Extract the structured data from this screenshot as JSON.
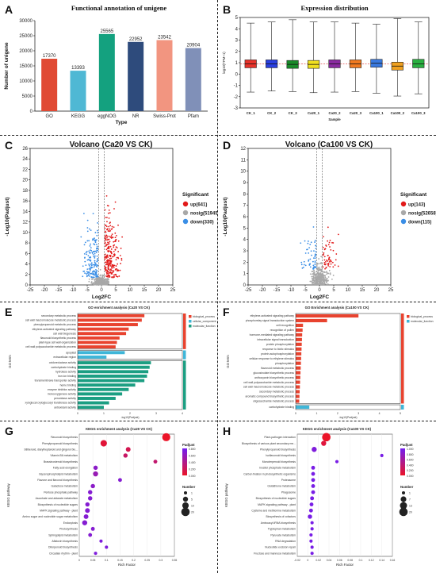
{
  "panels": {
    "A": {
      "letter": "A"
    },
    "B": {
      "letter": "B"
    },
    "C": {
      "letter": "C"
    },
    "D": {
      "letter": "D"
    },
    "E": {
      "letter": "E"
    },
    "F": {
      "letter": "F"
    },
    "G": {
      "letter": "G"
    },
    "H": {
      "letter": "H"
    }
  },
  "chart_data": [
    {
      "id": "A",
      "type": "bar",
      "title": "Functional annotation of unigene",
      "xlabel": "Type",
      "ylabel": "Number of unigene",
      "categories": [
        "GO",
        "KEGG",
        "eggNOG",
        "NR",
        "Swiss-Prot",
        "Pfam"
      ],
      "values": [
        17370,
        13393,
        25565,
        22952,
        23542,
        20904
      ],
      "colors": [
        "#e04a34",
        "#4fb8d4",
        "#14a17f",
        "#2e4b7c",
        "#f29580",
        "#8090b8"
      ],
      "ylim": [
        0,
        30000
      ],
      "yticks": [
        0,
        5000,
        10000,
        15000,
        20000,
        25000,
        30000
      ]
    },
    {
      "id": "B",
      "type": "box",
      "title": "Expression distribution",
      "xlabel": "Sample",
      "ylabel": "log10(TPM+1)",
      "ylim": [
        -3,
        5
      ],
      "yticks": [
        -3,
        -2,
        -1,
        0,
        1,
        2,
        3,
        4,
        5
      ],
      "categories": [
        "CK_1",
        "CK_2",
        "CK_3",
        "Ca20_1",
        "Ca20_2",
        "Ca20_3",
        "Ca100_1",
        "Ca100_2",
        "Ca100_3"
      ],
      "colors": [
        "#e8322a",
        "#2a3fe0",
        "#1a8a2a",
        "#f0e020",
        "#8a2aa0",
        "#f07a20",
        "#3a7ae0",
        "#f0a020",
        "#2ab040"
      ],
      "boxes": [
        {
          "min": -1.6,
          "q1": 0.55,
          "median": 0.9,
          "q3": 1.25,
          "max": 4.5
        },
        {
          "min": -1.5,
          "q1": 0.55,
          "median": 0.9,
          "q3": 1.25,
          "max": 4.6
        },
        {
          "min": -1.55,
          "q1": 0.5,
          "median": 0.85,
          "q3": 1.2,
          "max": 4.8
        },
        {
          "min": -1.65,
          "q1": 0.5,
          "median": 0.85,
          "q3": 1.2,
          "max": 4.6
        },
        {
          "min": -1.6,
          "q1": 0.55,
          "median": 0.9,
          "q3": 1.25,
          "max": 4.6
        },
        {
          "min": -1.55,
          "q1": 0.55,
          "median": 0.9,
          "q3": 1.25,
          "max": 4.5
        },
        {
          "min": -1.7,
          "q1": 0.6,
          "median": 0.95,
          "q3": 1.3,
          "max": 4.4
        },
        {
          "min": -1.95,
          "q1": 0.35,
          "median": 0.7,
          "q3": 1.05,
          "max": 4.9
        },
        {
          "min": -1.75,
          "q1": 0.55,
          "median": 0.9,
          "q3": 1.3,
          "max": 4.6
        }
      ]
    },
    {
      "id": "C",
      "type": "scatter",
      "title": "Volcano (Ca20 VS CK)",
      "xlabel": "Log2FC",
      "ylabel": "-Log10(Padjust)",
      "xlim": [
        -25,
        25
      ],
      "ylim": [
        0,
        26
      ],
      "xticks": [
        -25,
        -20,
        -15,
        -10,
        -5,
        0,
        5,
        10,
        15,
        20,
        25
      ],
      "yticks": [
        0,
        2,
        4,
        6,
        8,
        10,
        12,
        14,
        16,
        18,
        20,
        22,
        24,
        26
      ],
      "legend_title": "Significant",
      "legend_position": "right",
      "series": [
        {
          "name": "up(641)",
          "color": "#e21a1a",
          "count": 641
        },
        {
          "name": "nosig(51945)",
          "color": "#a8a8a8",
          "count": 51945
        },
        {
          "name": "down(330)",
          "color": "#3a8ee6",
          "count": 330
        }
      ]
    },
    {
      "id": "D",
      "type": "scatter",
      "title": "Volcano (Ca100 VS CK)",
      "xlabel": "Log2FC",
      "ylabel": "-Log10(Padjust)",
      "xlim": [
        -25,
        25
      ],
      "ylim": [
        0,
        12
      ],
      "xticks": [
        -25,
        -20,
        -15,
        -10,
        -5,
        0,
        5,
        10,
        15,
        20,
        25
      ],
      "yticks": [
        0,
        1,
        2,
        3,
        4,
        5,
        6,
        7,
        8,
        9,
        10,
        11,
        12
      ],
      "legend_title": "Significant",
      "legend_position": "right",
      "series": [
        {
          "name": "up(143)",
          "color": "#e21a1a",
          "count": 143
        },
        {
          "name": "nosig(52658)",
          "color": "#a8a8a8",
          "count": 52658
        },
        {
          "name": "down(115)",
          "color": "#3a8ee6",
          "count": 115
        }
      ]
    },
    {
      "id": "E",
      "type": "bar",
      "orientation": "horizontal",
      "title": "GO enrichment analysis (Ca20 VS CK)",
      "xlabel": "-log10(Padjust)",
      "ylabel": "GO term",
      "xlim": [
        0,
        4
      ],
      "legend": [
        "biological_process",
        "cellular_component",
        "molecular_function"
      ],
      "legend_colors": [
        "#e8432f",
        "#3fb6d8",
        "#1b9e82"
      ],
      "groups": [
        {
          "name": "biological_process",
          "color": "#e8432f",
          "terms": [
            "secondary metabolic process",
            "cell wall macromolecule metabolic process",
            "phenylpropanoid metabolic process",
            "ethylene-activated signaling pathway",
            "cell wall biogenesis",
            "flavonoid biosynthetic process",
            "plant-type cell wall organization",
            "cell wall polysaccharide metabolic process"
          ],
          "values": [
            2.55,
            2.45,
            2.3,
            1.95,
            1.85,
            1.6,
            1.5,
            1.45
          ]
        },
        {
          "name": "cellular_component",
          "color": "#3fb6d8",
          "terms": [
            "apoplast",
            "extracellular region"
          ],
          "values": [
            1.8,
            1.1
          ]
        },
        {
          "name": "molecular_function",
          "color": "#1b9e82",
          "terms": [
            "oxidoreductase activity",
            "carbohydrate binding",
            "hydrolase activity",
            "iron ion binding",
            "transmembrane transporter activity",
            "heme binding",
            "enzyme inhibitor activity",
            "monooxygenase activity",
            "peroxidase activity",
            "xyloglucan:xyloglucosyl transferase activity",
            "antioxidant activity"
          ],
          "values": [
            2.8,
            2.75,
            2.7,
            2.65,
            2.55,
            2.2,
            1.95,
            1.7,
            1.45,
            1.2,
            1.0
          ]
        }
      ]
    },
    {
      "id": "F",
      "type": "bar",
      "orientation": "horizontal",
      "title": "GO Enrichment analysis (Ca100 VS CK)",
      "xlabel": "-log10(Padjust)",
      "ylabel": "GO term",
      "xlim": [
        0,
        5
      ],
      "legend": [
        "biological_process",
        "molecular_function"
      ],
      "legend_colors": [
        "#e8432f",
        "#3fb6d8"
      ],
      "groups": [
        {
          "name": "biological_process",
          "color": "#e8432f",
          "terms": [
            "ethylene-activated signaling pathway",
            "phosphorelay signal transduction system",
            "cell recognition",
            "recognition of pollen",
            "hormone-mediated signaling pathway",
            "intracellular signal transduction",
            "protein phosphorylation",
            "response to biotic stimulus",
            "protein autophosphorylation",
            "cellular response to ethylene stimulus",
            "phosphorylation",
            "flavonoid metabolic process",
            "glucosinolate biosynthetic process",
            "anthocyanin biosynthetic process",
            "cell wall polysaccharide metabolic process",
            "cell wall macromolecule metabolic process",
            "secondary metabolic process",
            "aromatic compound biosynthetic process",
            "oligosaccharide metabolic process"
          ],
          "values": [
            3.0,
            1.5,
            0.35,
            0.33,
            0.31,
            0.3,
            0.29,
            0.28,
            0.27,
            0.26,
            0.25,
            0.24,
            0.23,
            0.22,
            0.21,
            0.2,
            0.19,
            0.18,
            0.17
          ]
        },
        {
          "name": "molecular_function",
          "color": "#3fb6d8",
          "terms": [
            "carbohydrate binding"
          ],
          "values": [
            0.65
          ]
        }
      ]
    },
    {
      "id": "G",
      "type": "scatter",
      "title": "KEGG enrichment analysis (Ca20 VS CK)",
      "xlabel": "Rich Factor",
      "ylabel": "KEGG pathway",
      "xlim": [
        0,
        0.35
      ],
      "xticks": [
        0,
        0.05,
        0.1,
        0.15,
        0.2,
        0.25,
        0.3,
        0.35
      ],
      "legend_titles": [
        "Padjust",
        "Number"
      ],
      "padjust_ticks": [
        0.8,
        0.6,
        0.4,
        0.2,
        0.0
      ],
      "number_ticks": [
        1,
        5,
        10,
        20
      ],
      "points": [
        {
          "pathway": "Flavonoid biosynthesis",
          "rich": 0.32,
          "n": 18,
          "p": 0.0
        },
        {
          "pathway": "Phenylpropanoid biosynthesis",
          "rich": 0.09,
          "n": 10,
          "p": 0.08
        },
        {
          "pathway": "Stilbenoid, diarylheptanoid and gingerol bio...",
          "rich": 0.18,
          "n": 4,
          "p": 0.2
        },
        {
          "pathway": "Vitamin B6 metabolism",
          "rich": 0.17,
          "n": 3,
          "p": 0.3
        },
        {
          "pathway": "Brassinosteroid biosynthesis",
          "rich": 0.28,
          "n": 2,
          "p": 0.35
        },
        {
          "pathway": "Fatty acid elongation",
          "rich": 0.06,
          "n": 3,
          "p": 0.8
        },
        {
          "pathway": "Glycerophospholipid metabolism",
          "rich": 0.06,
          "n": 5,
          "p": 0.7
        },
        {
          "pathway": "Flavone and flavonol biosynthesis",
          "rich": 0.15,
          "n": 2,
          "p": 0.85
        },
        {
          "pathway": "Galactose metabolism",
          "rich": 0.05,
          "n": 3,
          "p": 0.8
        },
        {
          "pathway": "Pentose phosphate pathway",
          "rich": 0.04,
          "n": 3,
          "p": 0.85
        },
        {
          "pathway": "Ascorbate and aldarate metabolism",
          "rich": 0.04,
          "n": 3,
          "p": 0.85
        },
        {
          "pathway": "Biosynthesis of nucleotide sugars",
          "rich": 0.03,
          "n": 3,
          "p": 0.85
        },
        {
          "pathway": "MAPK signaling pathway - plant",
          "rich": 0.03,
          "n": 4,
          "p": 0.85
        },
        {
          "pathway": "Amino sugar and nucleotide sugar metabolism",
          "rich": 0.025,
          "n": 4,
          "p": 0.85
        },
        {
          "pathway": "Endocytosis",
          "rich": 0.02,
          "n": 5,
          "p": 0.85
        },
        {
          "pathway": "Photosynthesis",
          "rich": 0.05,
          "n": 2,
          "p": 0.85
        },
        {
          "pathway": "Sphingolipid metabolism",
          "rich": 0.04,
          "n": 2,
          "p": 0.85
        },
        {
          "pathway": "Aflatoxin biosynthesis",
          "rich": 0.08,
          "n": 1,
          "p": 0.9
        },
        {
          "pathway": "Diterpenoid biosynthesis",
          "rich": 0.1,
          "n": 1,
          "p": 0.9
        },
        {
          "pathway": "Circadian rhythm - plant",
          "rich": 0.06,
          "n": 1,
          "p": 0.9
        }
      ]
    },
    {
      "id": "H",
      "type": "scatter",
      "title": "KEGG enrichment analysis (Ca100 VS CK)",
      "xlabel": "Rich Factor",
      "ylabel": "KEGG pathway",
      "xlim": [
        -0.02,
        0.16
      ],
      "xticks": [
        -0.02,
        0,
        0.02,
        0.04,
        0.06,
        0.08,
        0.1,
        0.12,
        0.14,
        0.16
      ],
      "legend_titles": [
        "Padjust",
        "Number"
      ],
      "padjust_ticks": [
        1.0,
        0.8,
        0.6,
        0.4,
        0.2,
        0.0
      ],
      "number_ticks": [
        1,
        7,
        13,
        20
      ],
      "points": [
        {
          "pathway": "Plant-pathogen interaction",
          "rich": 0.035,
          "n": 20,
          "p": 0.0
        },
        {
          "pathway": "Biosynthesis of various plant secondary me...",
          "rich": 0.03,
          "n": 5,
          "p": 0.1
        },
        {
          "pathway": "Phenylpropanoid biosynthesis",
          "rich": 0.012,
          "n": 5,
          "p": 0.9
        },
        {
          "pathway": "Isoflavonoid biosynthesis",
          "rich": 0.14,
          "n": 1,
          "p": 0.95
        },
        {
          "pathway": "Monoterpenoid biosynthesis",
          "rich": 0.055,
          "n": 1,
          "p": 0.95
        },
        {
          "pathway": "Inositol phosphate metabolism",
          "rich": 0.01,
          "n": 2,
          "p": 0.95
        },
        {
          "pathway": "Carbon fixation in photosynthetic organisms",
          "rich": 0.01,
          "n": 2,
          "p": 0.95
        },
        {
          "pathway": "Proteasome",
          "rich": 0.01,
          "n": 2,
          "p": 0.95
        },
        {
          "pathway": "Glutathione metabolism",
          "rich": 0.01,
          "n": 2,
          "p": 0.95
        },
        {
          "pathway": "Phagosome",
          "rich": 0.01,
          "n": 2,
          "p": 0.95
        },
        {
          "pathway": "Biosynthesis of nucleotide sugars",
          "rich": 0.008,
          "n": 2,
          "p": 0.95
        },
        {
          "pathway": "MAPK signaling pathway - plant",
          "rich": 0.007,
          "n": 2,
          "p": 0.95
        },
        {
          "pathway": "Cysteine and methionine metabolism",
          "rich": 0.006,
          "n": 2,
          "p": 0.95
        },
        {
          "pathway": "Biosynthesis of cofactors",
          "rich": 0.004,
          "n": 3,
          "p": 0.95
        },
        {
          "pathway": "Aminoacyl-tRNA biosynthesis",
          "rich": 0.008,
          "n": 1,
          "p": 0.95
        },
        {
          "pathway": "Tryptophan metabolism",
          "rich": 0.008,
          "n": 1,
          "p": 0.95
        },
        {
          "pathway": "Pyruvate metabolism",
          "rich": 0.006,
          "n": 1,
          "p": 0.95
        },
        {
          "pathway": "RNA degradation",
          "rich": 0.006,
          "n": 1,
          "p": 0.95
        },
        {
          "pathway": "Nucleotide excision repair",
          "rich": 0.008,
          "n": 1,
          "p": 0.95
        },
        {
          "pathway": "Fructose and mannose metabolism",
          "rich": 0.008,
          "n": 1,
          "p": 0.95
        }
      ]
    }
  ]
}
